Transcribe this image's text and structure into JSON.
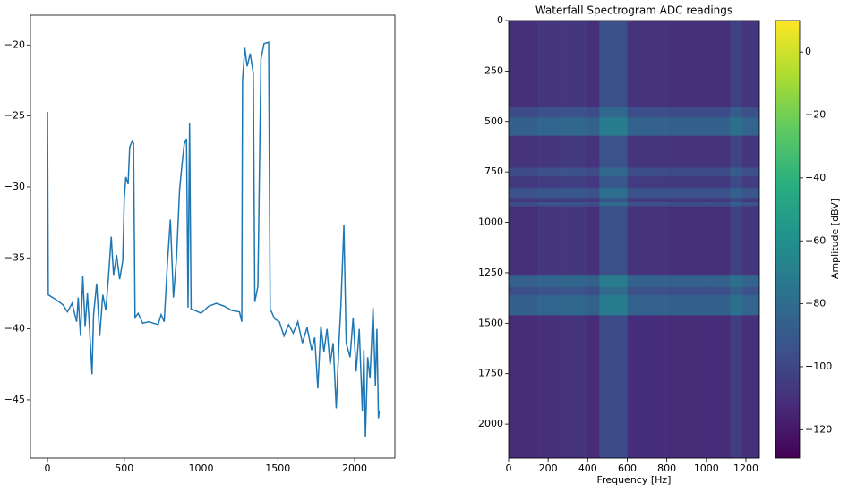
{
  "chart_data": [
    {
      "type": "line",
      "color": "#1f77b4",
      "x": [
        0,
        5,
        50,
        100,
        130,
        160,
        190,
        200,
        215,
        230,
        245,
        260,
        275,
        290,
        300,
        320,
        340,
        360,
        380,
        400,
        415,
        430,
        450,
        470,
        490,
        500,
        510,
        525,
        535,
        550,
        560,
        570,
        590,
        620,
        660,
        690,
        720,
        740,
        760,
        780,
        800,
        820,
        840,
        860,
        875,
        890,
        905,
        915,
        925,
        935,
        960,
        1000,
        1050,
        1100,
        1150,
        1200,
        1250,
        1265,
        1270,
        1285,
        1300,
        1320,
        1340,
        1350,
        1370,
        1390,
        1410,
        1440,
        1450,
        1480,
        1510,
        1540,
        1570,
        1600,
        1630,
        1660,
        1690,
        1720,
        1740,
        1760,
        1780,
        1800,
        1820,
        1840,
        1860,
        1880,
        1900,
        1910,
        1930,
        1945,
        1970,
        1990,
        2010,
        2030,
        2050,
        2060,
        2070,
        2085,
        2100,
        2120,
        2135,
        2145,
        2155,
        2160
      ],
      "values": [
        -24.7,
        -37.6,
        -37.9,
        -38.3,
        -38.8,
        -38.2,
        -39.5,
        -37.8,
        -40.5,
        -36.3,
        -39.8,
        -37.5,
        -40.2,
        -43.2,
        -39.0,
        -36.8,
        -40.5,
        -37.6,
        -38.7,
        -35.9,
        -33.5,
        -36.2,
        -34.8,
        -36.5,
        -35.2,
        -30.8,
        -29.3,
        -29.8,
        -27.2,
        -26.8,
        -26.9,
        -39.2,
        -38.9,
        -39.6,
        -39.5,
        -39.6,
        -39.7,
        -39.0,
        -39.5,
        -35.5,
        -32.3,
        -37.8,
        -35.0,
        -30.2,
        -28.5,
        -27.0,
        -26.6,
        -38.5,
        -25.5,
        -38.6,
        -38.7,
        -38.9,
        -38.4,
        -38.2,
        -38.4,
        -38.7,
        -38.8,
        -39.5,
        -22.5,
        -20.2,
        -21.5,
        -20.6,
        -22.0,
        -38.1,
        -37.0,
        -21.0,
        -19.9,
        -19.8,
        -38.6,
        -39.3,
        -39.5,
        -40.5,
        -39.7,
        -40.3,
        -39.5,
        -41.0,
        -39.9,
        -41.5,
        -40.6,
        -44.2,
        -39.8,
        -41.6,
        -40.0,
        -42.5,
        -41.0,
        -45.6,
        -40.5,
        -38.5,
        -32.7,
        -41.0,
        -42.0,
        -39.2,
        -43.0,
        -40.0,
        -45.8,
        -41.5,
        -47.6,
        -42.0,
        -43.5,
        -38.5,
        -44.0,
        -40.0,
        -46.3,
        -45.8
      ],
      "xlim": [
        -111,
        2262
      ],
      "ylim": [
        -49.1,
        -17.9
      ],
      "xticks": [
        0,
        500,
        1000,
        1500,
        2000
      ],
      "yticks": [
        {
          "value": -45,
          "label": "−45"
        },
        {
          "value": -40,
          "label": "−40"
        },
        {
          "value": -35,
          "label": "−35"
        },
        {
          "value": -30,
          "label": "−30"
        },
        {
          "value": -25,
          "label": "−25"
        },
        {
          "value": -20,
          "label": "−20"
        }
      ]
    },
    {
      "type": "heatmap",
      "title": "Waterfall Spectrogram ADC readings",
      "xlabel": "Frequency [Hz]",
      "colorbar_label": "Amplitude [dBV]",
      "colormap": "viridis",
      "x_edges": [
        0,
        150,
        270,
        400,
        460,
        600,
        800,
        1000,
        1120,
        1180,
        1268
      ],
      "y_edges": [
        0,
        430,
        480,
        570,
        730,
        770,
        830,
        880,
        900,
        920,
        1260,
        1320,
        1360,
        1460,
        2168
      ],
      "z": [
        [
          -110,
          -108,
          -107,
          -110,
          -95,
          -109,
          -110,
          -110,
          -102,
          -108
        ],
        [
          -97,
          -95,
          -94,
          -97,
          -82,
          -96,
          -97,
          -97,
          -89,
          -95
        ],
        [
          -86,
          -84,
          -83,
          -86,
          -71,
          -85,
          -86,
          -86,
          -78,
          -84
        ],
        [
          -109,
          -107,
          -106,
          -109,
          -94,
          -108,
          -109,
          -109,
          -101,
          -107
        ],
        [
          -97,
          -95,
          -94,
          -97,
          -82,
          -96,
          -97,
          -97,
          -89,
          -95
        ],
        [
          -106,
          -104,
          -103,
          -106,
          -91,
          -105,
          -106,
          -106,
          -98,
          -104
        ],
        [
          -94,
          -92,
          -91,
          -94,
          -79,
          -93,
          -94,
          -94,
          -86,
          -92
        ],
        [
          -108,
          -106,
          -105,
          -108,
          -93,
          -107,
          -108,
          -108,
          -100,
          -106
        ],
        [
          -96,
          -94,
          -93,
          -96,
          -81,
          -95,
          -96,
          -96,
          -88,
          -94
        ],
        [
          -110,
          -108,
          -107,
          -110,
          -95,
          -109,
          -110,
          -110,
          -102,
          -108
        ],
        [
          -86,
          -84,
          -83,
          -86,
          -71,
          -85,
          -86,
          -86,
          -78,
          -84
        ],
        [
          -96,
          -94,
          -93,
          -96,
          -81,
          -95,
          -96,
          -96,
          -88,
          -94
        ],
        [
          -86,
          -84,
          -83,
          -86,
          -71,
          -85,
          -86,
          -86,
          -78,
          -84
        ],
        [
          -112,
          -110,
          -109,
          -112,
          -97,
          -111,
          -112,
          -112,
          -104,
          -110
        ]
      ],
      "xlim": [
        0,
        1268
      ],
      "ylim": [
        2168,
        0
      ],
      "xticks": [
        0,
        200,
        400,
        600,
        800,
        1000,
        1200
      ],
      "yticks": [
        0,
        250,
        500,
        750,
        1000,
        1250,
        1500,
        1750,
        2000
      ],
      "clim": [
        -129,
        10
      ],
      "cticks": [
        {
          "value": -120,
          "label": "−120"
        },
        {
          "value": -100,
          "label": "−100"
        },
        {
          "value": -80,
          "label": "−80"
        },
        {
          "value": -60,
          "label": "−60"
        },
        {
          "value": -40,
          "label": "−40"
        },
        {
          "value": -20,
          "label": "−20"
        },
        0
      ]
    }
  ]
}
